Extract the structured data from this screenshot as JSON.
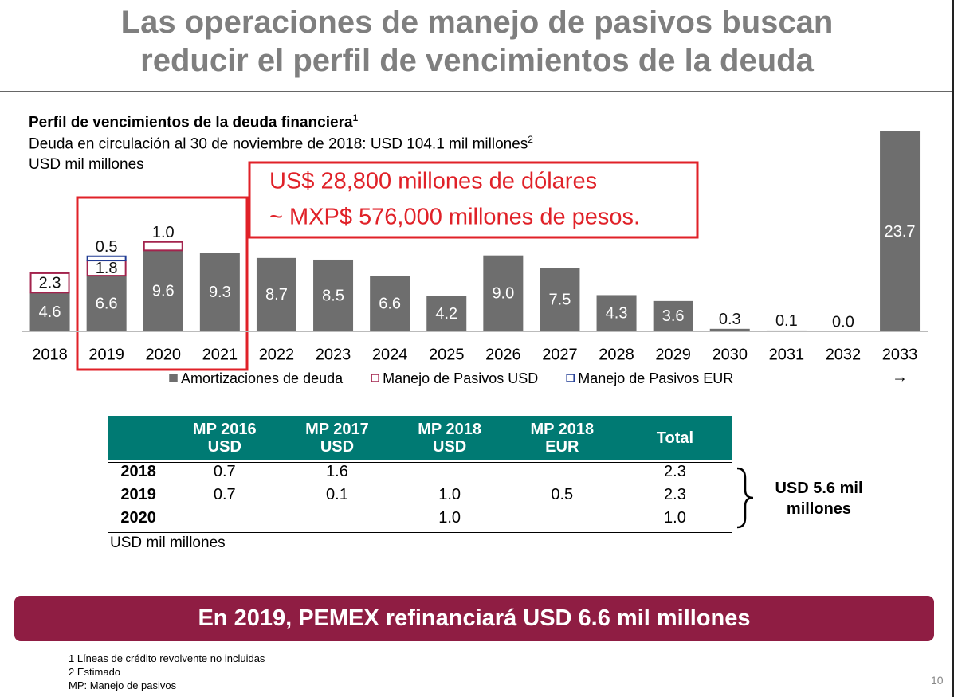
{
  "header": {
    "title_line1": "Las operaciones de manejo de pasivos buscan",
    "title_line2": "reducir el perfil de vencimientos de la deuda"
  },
  "chart_data": {
    "type": "stacked_bar",
    "title": "Perfil de vencimientos de la deuda financiera",
    "title_note": "1",
    "subtitle": "Deuda en circulación al 30 de noviembre de 2018: USD 104.1 mil millones",
    "subtitle_note": "2",
    "unit_label": "USD mil millones",
    "categories": [
      "2018",
      "2019",
      "2020",
      "2021",
      "2022",
      "2023",
      "2024",
      "2025",
      "2026",
      "2027",
      "2028",
      "2029",
      "2030",
      "2031",
      "2032",
      "2033"
    ],
    "last_category_arrow": "→",
    "series": [
      {
        "name": "Amortizaciones de deuda",
        "color": "#6e6e6e",
        "style": "fill",
        "values": [
          4.6,
          6.6,
          9.6,
          9.3,
          8.7,
          8.5,
          6.6,
          4.2,
          9.0,
          7.5,
          4.3,
          3.6,
          0.3,
          0.1,
          0.0,
          23.7
        ],
        "value_labels": [
          "4.6",
          "6.6",
          "9.6",
          "9.3",
          "8.7",
          "8.5",
          "6.6",
          "4.2",
          "9.0",
          "7.5",
          "4.3",
          "3.6",
          "0.3",
          "0.1",
          "0.0",
          "23.7"
        ]
      },
      {
        "name": "Manejo de Pasivos USD",
        "color": "#a3234d",
        "style": "outline",
        "values": [
          2.3,
          1.8,
          1.0,
          null,
          null,
          null,
          null,
          null,
          null,
          null,
          null,
          null,
          null,
          null,
          null,
          null
        ],
        "value_labels": [
          "2.3",
          "1.8",
          "1.0",
          null,
          null,
          null,
          null,
          null,
          null,
          null,
          null,
          null,
          null,
          null,
          null,
          null
        ]
      },
      {
        "name": "Manejo de Pasivos EUR",
        "color": "#1f3a93",
        "style": "outline",
        "values": [
          null,
          0.5,
          null,
          null,
          null,
          null,
          null,
          null,
          null,
          null,
          null,
          null,
          null,
          null,
          null,
          null
        ],
        "value_labels": [
          null,
          "0.5",
          null,
          null,
          null,
          null,
          null,
          null,
          null,
          null,
          null,
          null,
          null,
          null,
          null,
          null
        ]
      }
    ],
    "annotation_line1": "US$ 28,800 millones de dólares",
    "annotation_line2": "~  MXP$ 576,000 millones de pesos."
  },
  "table": {
    "headers": [
      "MP 2016 USD",
      "MP 2017 USD",
      "MP 2018 USD",
      "MP 2018 EUR",
      "Total"
    ],
    "rows": [
      [
        "2018",
        "0.7",
        "1.6",
        null,
        null,
        "2.3"
      ],
      [
        "2019",
        "0.7",
        "0.1",
        "1.0",
        "0.5",
        "2.3"
      ],
      [
        "2020",
        null,
        null,
        "1.0",
        null,
        "1.0"
      ]
    ],
    "unit": "USD mil millones",
    "sum_label": "USD 5.6 mil millones"
  },
  "banner": "En 2019, PEMEX refinanciará USD 6.6 mil millones",
  "footnotes": [
    "1   Líneas de crédito revolvente no incluidas",
    "2   Estimado",
    "MP: Manejo de pasivos"
  ],
  "page_number": "10"
}
